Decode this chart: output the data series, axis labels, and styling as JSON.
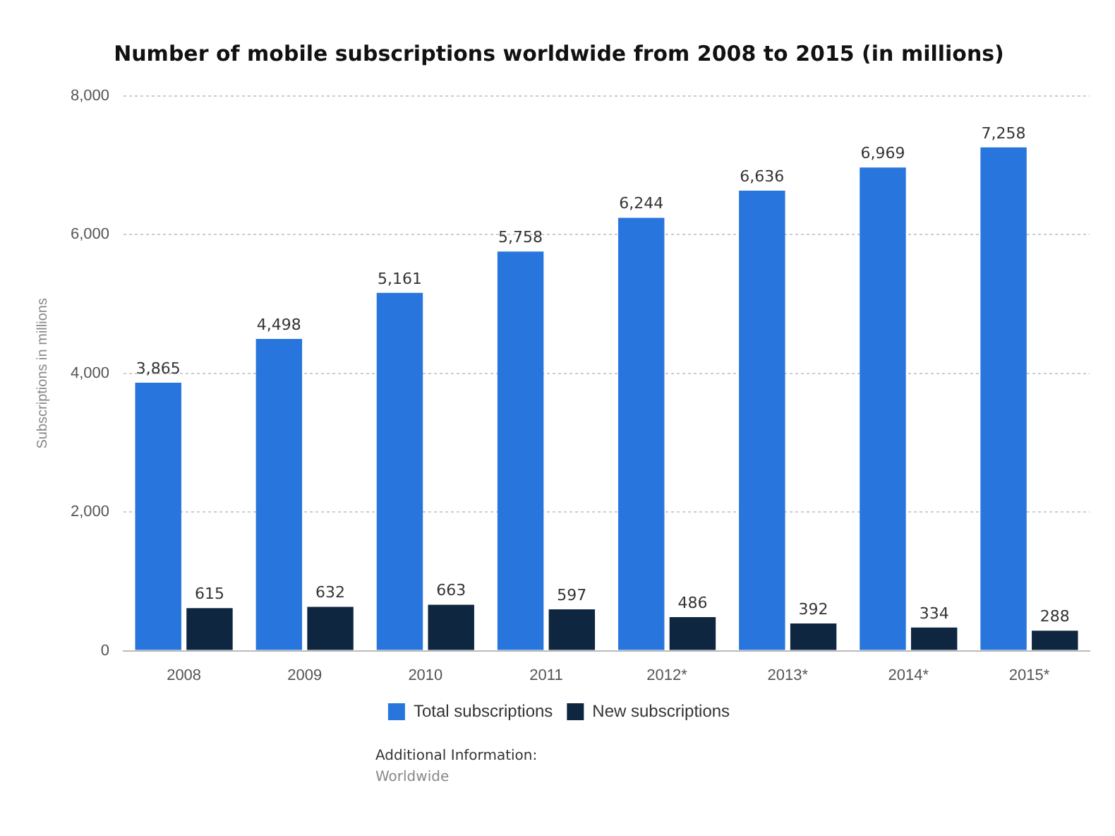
{
  "chart_data": {
    "type": "bar",
    "title": "Number of mobile subscriptions worldwide from 2008 to 2015 (in millions)",
    "ylabel": "Subscriptions in millions",
    "categories": [
      "2008",
      "2009",
      "2010",
      "2011",
      "2012*",
      "2013*",
      "2014*",
      "2015*"
    ],
    "series": [
      {
        "name": "Total subscriptions",
        "color": "#2876dd",
        "values": [
          3865,
          4498,
          5161,
          5758,
          6244,
          6636,
          6969,
          7258
        ],
        "value_labels": [
          "3,865",
          "4,498",
          "5,161",
          "5,758",
          "6,244",
          "6,636",
          "6,969",
          "7,258"
        ]
      },
      {
        "name": "New subscriptions",
        "color": "#0e2640",
        "values": [
          615,
          632,
          663,
          597,
          486,
          392,
          334,
          288
        ],
        "value_labels": [
          "615",
          "632",
          "663",
          "597",
          "486",
          "392",
          "334",
          "288"
        ]
      }
    ],
    "ylim": [
      0,
      8000
    ],
    "yticks": [
      0,
      {
        "value": 2000,
        "label": "2,000"
      },
      {
        "value": 4000,
        "label": "4,000"
      },
      {
        "value": 6000,
        "label": "6,000"
      },
      {
        "value": 8000,
        "label": "8,000"
      }
    ],
    "grid": "y",
    "legend": "bottom",
    "annotations": [
      "Additional Information:",
      "Worldwide"
    ]
  }
}
